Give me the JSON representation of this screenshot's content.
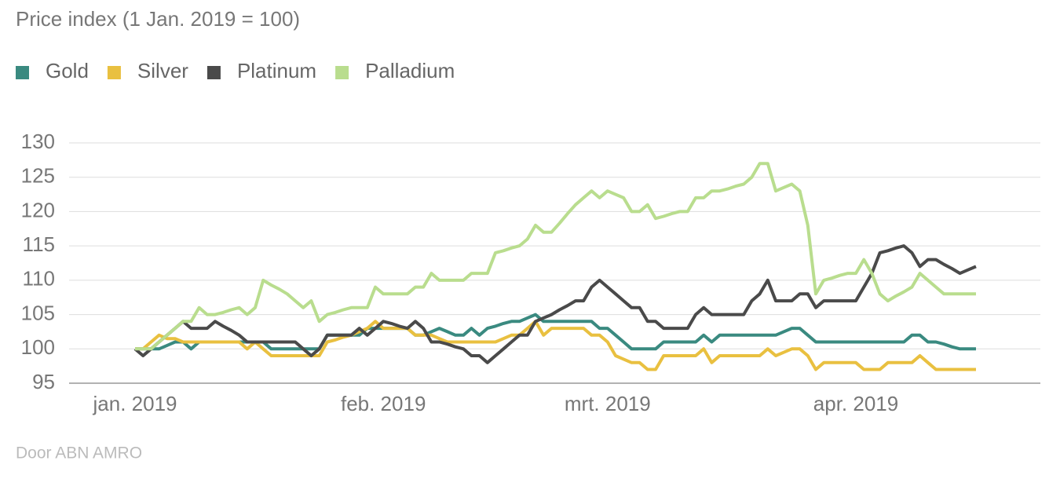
{
  "chart_data": {
    "type": "line",
    "title": "Price index (1 Jan. 2019 = 100)",
    "source": "Door ABN AMRO",
    "categories": [
      "jan. 2019",
      null,
      null,
      null,
      null,
      null,
      null,
      null,
      null,
      null,
      null,
      null,
      null,
      null,
      null,
      null,
      null,
      null,
      null,
      null,
      null,
      null,
      null,
      null,
      null,
      null,
      null,
      null,
      null,
      null,
      null,
      "feb. 2019",
      null,
      null,
      null,
      null,
      null,
      null,
      null,
      null,
      null,
      null,
      null,
      null,
      null,
      null,
      null,
      null,
      null,
      null,
      null,
      null,
      null,
      null,
      null,
      null,
      null,
      null,
      null,
      "mrt. 2019",
      null,
      null,
      null,
      null,
      null,
      null,
      null,
      null,
      null,
      null,
      null,
      null,
      null,
      null,
      null,
      null,
      null,
      null,
      null,
      null,
      null,
      null,
      null,
      null,
      null,
      null,
      null,
      null,
      null,
      null,
      "apr. 2019",
      null,
      null,
      null,
      null,
      null,
      null,
      null,
      null,
      null,
      null,
      null,
      null,
      null,
      null,
      null
    ],
    "series": [
      {
        "name": "Gold",
        "color": "#3a8a80",
        "values": [
          100,
          100,
          100,
          100,
          100.5,
          101,
          101,
          100,
          101,
          101,
          101,
          101,
          101,
          101,
          101,
          101,
          101,
          100,
          100,
          100,
          100,
          100,
          100,
          100,
          102,
          102,
          102,
          102,
          102,
          103,
          103,
          103,
          103,
          103,
          103,
          102,
          102,
          102.5,
          103,
          102.5,
          102,
          102,
          103,
          102,
          103,
          103.3,
          103.7,
          104,
          104,
          104.5,
          105,
          104,
          104,
          104,
          104,
          104,
          104,
          104,
          103,
          103,
          102,
          101,
          100,
          100,
          100,
          100,
          101,
          101,
          101,
          101,
          101,
          102,
          101,
          102,
          102,
          102,
          102,
          102,
          102,
          102,
          102,
          102.5,
          103,
          103,
          102,
          101,
          101,
          101,
          101,
          101,
          101,
          101,
          101,
          101,
          101,
          101,
          101,
          102,
          102,
          101,
          101,
          100.7,
          100.3,
          100,
          100,
          100
        ]
      },
      {
        "name": "Silver",
        "color": "#e9c040",
        "values": [
          100,
          100,
          101,
          102,
          101.5,
          101.5,
          101,
          101,
          101,
          101,
          101,
          101,
          101,
          101,
          100,
          101,
          100,
          99,
          99,
          99,
          99,
          99,
          99,
          99,
          101,
          101.3,
          101.7,
          102,
          102.5,
          103,
          104,
          103,
          103,
          103,
          103,
          102,
          102,
          102,
          101.5,
          101,
          101,
          101,
          101,
          101,
          101,
          101,
          101.5,
          102,
          102,
          103,
          104,
          102,
          103,
          103,
          103,
          103,
          103,
          102,
          102,
          101,
          99,
          98.5,
          98,
          98,
          97,
          97,
          99,
          99,
          99,
          99,
          99,
          100,
          98,
          99,
          99,
          99,
          99,
          99,
          99,
          100,
          99,
          99.5,
          100,
          100,
          99,
          97,
          98,
          98,
          98,
          98,
          98,
          97,
          97,
          97,
          98,
          98,
          98,
          98,
          99,
          98,
          97,
          97,
          97,
          97,
          97,
          97
        ]
      },
      {
        "name": "Platinum",
        "color": "#4a4a4a",
        "values": [
          100,
          99,
          100,
          101,
          102,
          103,
          104,
          103,
          103,
          103,
          104,
          103.3,
          102.7,
          102,
          101,
          101,
          101,
          101,
          101,
          101,
          101,
          100,
          99,
          100,
          102,
          102,
          102,
          102,
          103,
          102,
          103,
          104,
          103.7,
          103.3,
          103,
          104,
          103,
          101,
          101,
          100.7,
          100.3,
          100,
          99,
          99,
          98,
          99,
          100,
          101,
          102,
          102,
          104,
          104.5,
          105,
          105.7,
          106.3,
          107,
          107,
          109,
          110,
          109,
          108,
          107,
          106,
          106,
          104,
          104,
          103,
          103,
          103,
          103,
          105,
          106,
          105,
          105,
          105,
          105,
          105,
          107,
          108,
          110,
          107,
          107,
          107,
          108,
          108,
          106,
          107,
          107,
          107,
          107,
          107,
          109,
          111,
          114,
          114.3,
          114.7,
          115,
          114,
          112,
          113,
          113,
          112.3,
          111.7,
          111,
          111.5,
          112
        ]
      },
      {
        "name": "Palladium",
        "color": "#b9dd8e",
        "values": [
          100,
          100,
          100,
          101,
          102,
          103,
          104,
          104,
          106,
          105,
          105,
          105.3,
          105.7,
          106,
          105,
          106,
          110,
          109.3,
          108.7,
          108,
          107,
          106,
          107,
          104,
          105,
          105.3,
          105.7,
          106,
          106,
          106,
          109,
          108,
          108,
          108,
          108,
          109,
          109,
          111,
          110,
          110,
          110,
          110,
          111,
          111,
          111,
          114,
          114.3,
          114.7,
          115,
          116,
          118,
          117,
          117,
          118.3,
          119.7,
          121,
          122,
          123,
          122,
          123,
          122.5,
          122,
          120,
          120,
          121,
          119,
          119.3,
          119.7,
          120,
          120,
          122,
          122,
          123,
          123,
          123.3,
          123.7,
          124,
          125,
          127,
          127,
          123,
          123.5,
          124,
          123,
          118,
          108,
          110,
          110.3,
          110.7,
          111,
          111,
          113,
          111,
          108,
          107,
          107.7,
          108.3,
          109,
          111,
          110,
          109,
          108,
          108,
          108,
          108,
          108
        ]
      }
    ],
    "ylim": [
      95,
      130
    ],
    "yticks": [
      95,
      100,
      105,
      110,
      115,
      120,
      125,
      130
    ],
    "grid": true
  }
}
